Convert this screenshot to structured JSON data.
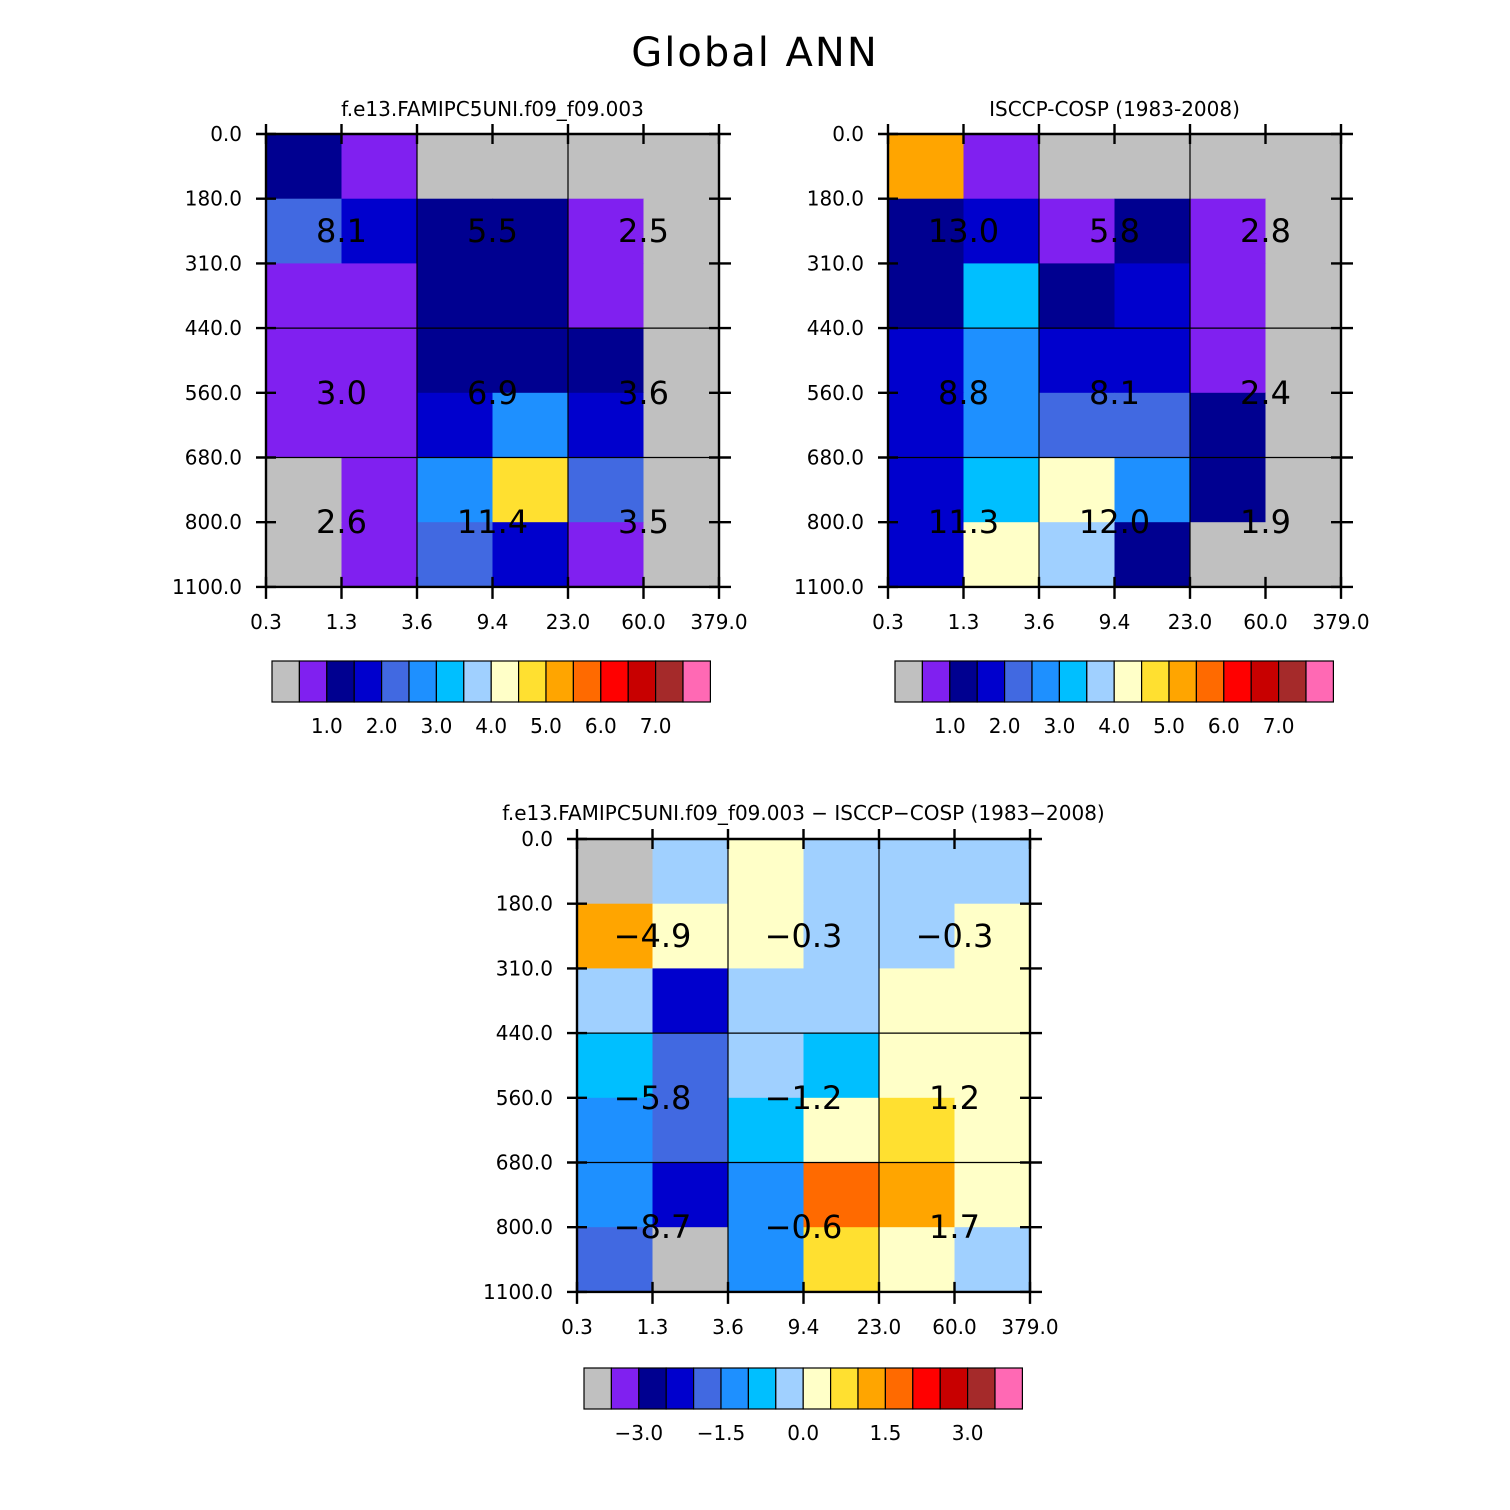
{
  "title": "Global ANN",
  "chart_data": [
    {
      "type": "heatmap",
      "title": "f.e13.FAMIPC5UNI.f09_f09.003",
      "x_ticks": [
        "0.3",
        "1.3",
        "3.6",
        "9.4",
        "23.0",
        "60.0",
        "379.0"
      ],
      "y_ticks": [
        "0.0",
        "180.0",
        "310.0",
        "440.0",
        "560.0",
        "680.0",
        "800.0",
        "1100.0"
      ],
      "cell_colors": [
        [
          "#000090",
          "#8020f0",
          "#c0c0c0",
          "#c0c0c0",
          "#c0c0c0",
          "#c0c0c0"
        ],
        [
          "#4169e1",
          "#0000cd",
          "#000090",
          "#000090",
          "#8020f0",
          "#c0c0c0"
        ],
        [
          "#8020f0",
          "#8020f0",
          "#000090",
          "#000090",
          "#8020f0",
          "#c0c0c0"
        ],
        [
          "#8020f0",
          "#8020f0",
          "#000090",
          "#000090",
          "#000090",
          "#c0c0c0"
        ],
        [
          "#8020f0",
          "#8020f0",
          "#0000cd",
          "#1e90ff",
          "#0000cd",
          "#c0c0c0"
        ],
        [
          "#c0c0c0",
          "#8020f0",
          "#1e90ff",
          "#ffe030",
          "#4169e1",
          "#c0c0c0"
        ],
        [
          "#c0c0c0",
          "#8020f0",
          "#4169e1",
          "#0000cd",
          "#8020f0",
          "#c0c0c0"
        ]
      ],
      "group_values": [
        [
          "8.1",
          "5.5",
          "2.5"
        ],
        [
          "3.0",
          "6.9",
          "3.6"
        ],
        [
          "2.6",
          "11.4",
          "3.5"
        ]
      ],
      "colorbar": {
        "colors": [
          "#c0c0c0",
          "#8020f0",
          "#000090",
          "#0000cd",
          "#4169e1",
          "#1e90ff",
          "#00bfff",
          "#a0d0ff",
          "#ffffc8",
          "#ffe030",
          "#ffa500",
          "#ff6a00",
          "#ff0000",
          "#c80000",
          "#a52a2a",
          "#ff69b4"
        ],
        "labels": [
          "1.0",
          "2.0",
          "3.0",
          "4.0",
          "5.0",
          "6.0",
          "7.0"
        ]
      }
    },
    {
      "type": "heatmap",
      "title": "ISCCP-COSP (1983-2008)",
      "x_ticks": [
        "0.3",
        "1.3",
        "3.6",
        "9.4",
        "23.0",
        "60.0",
        "379.0"
      ],
      "y_ticks": [
        "0.0",
        "180.0",
        "310.0",
        "440.0",
        "560.0",
        "680.0",
        "800.0",
        "1100.0"
      ],
      "cell_colors": [
        [
          "#ffa500",
          "#8020f0",
          "#c0c0c0",
          "#c0c0c0",
          "#c0c0c0",
          "#c0c0c0"
        ],
        [
          "#000090",
          "#0000cd",
          "#8020f0",
          "#000090",
          "#8020f0",
          "#c0c0c0"
        ],
        [
          "#000090",
          "#00bfff",
          "#000090",
          "#0000cd",
          "#8020f0",
          "#c0c0c0"
        ],
        [
          "#0000cd",
          "#1e90ff",
          "#0000cd",
          "#0000cd",
          "#8020f0",
          "#c0c0c0"
        ],
        [
          "#0000cd",
          "#1e90ff",
          "#4169e1",
          "#4169e1",
          "#000090",
          "#c0c0c0"
        ],
        [
          "#0000cd",
          "#00bfff",
          "#ffffc8",
          "#1e90ff",
          "#000090",
          "#c0c0c0"
        ],
        [
          "#0000cd",
          "#ffffc8",
          "#a0d0ff",
          "#000090",
          "#c0c0c0",
          "#c0c0c0"
        ]
      ],
      "group_values": [
        [
          "13.0",
          "5.8",
          "2.8"
        ],
        [
          "8.8",
          "8.1",
          "2.4"
        ],
        [
          "11.3",
          "12.0",
          "1.9"
        ]
      ],
      "colorbar": {
        "colors": [
          "#c0c0c0",
          "#8020f0",
          "#000090",
          "#0000cd",
          "#4169e1",
          "#1e90ff",
          "#00bfff",
          "#a0d0ff",
          "#ffffc8",
          "#ffe030",
          "#ffa500",
          "#ff6a00",
          "#ff0000",
          "#c80000",
          "#a52a2a",
          "#ff69b4"
        ],
        "labels": [
          "1.0",
          "2.0",
          "3.0",
          "4.0",
          "5.0",
          "6.0",
          "7.0"
        ]
      }
    },
    {
      "type": "heatmap",
      "title": "f.e13.FAMIPC5UNI.f09_f09.003 − ISCCP−COSP (1983−2008)",
      "x_ticks": [
        "0.3",
        "1.3",
        "3.6",
        "9.4",
        "23.0",
        "60.0",
        "379.0"
      ],
      "y_ticks": [
        "0.0",
        "180.0",
        "310.0",
        "440.0",
        "560.0",
        "680.0",
        "800.0",
        "1100.0"
      ],
      "cell_colors": [
        [
          "#c0c0c0",
          "#a0d0ff",
          "#ffffc8",
          "#a0d0ff",
          "#a0d0ff",
          "#a0d0ff"
        ],
        [
          "#ffa500",
          "#ffffc8",
          "#ffffc8",
          "#a0d0ff",
          "#a0d0ff",
          "#ffffc8"
        ],
        [
          "#a0d0ff",
          "#0000cd",
          "#a0d0ff",
          "#a0d0ff",
          "#ffffc8",
          "#ffffc8"
        ],
        [
          "#00bfff",
          "#4169e1",
          "#a0d0ff",
          "#00bfff",
          "#ffffc8",
          "#ffffc8"
        ],
        [
          "#1e90ff",
          "#4169e1",
          "#00bfff",
          "#ffffc8",
          "#ffe030",
          "#ffffc8"
        ],
        [
          "#1e90ff",
          "#0000cd",
          "#1e90ff",
          "#ff6a00",
          "#ffa500",
          "#ffffc8"
        ],
        [
          "#4169e1",
          "#c0c0c0",
          "#1e90ff",
          "#ffe030",
          "#ffffc8",
          "#a0d0ff"
        ]
      ],
      "group_values": [
        [
          "−4.9",
          "−0.3",
          "−0.3"
        ],
        [
          "−5.8",
          "−1.2",
          "1.2"
        ],
        [
          "−8.7",
          "−0.6",
          "1.7"
        ]
      ],
      "colorbar": {
        "colors": [
          "#c0c0c0",
          "#8020f0",
          "#000090",
          "#0000cd",
          "#4169e1",
          "#1e90ff",
          "#00bfff",
          "#a0d0ff",
          "#ffffc8",
          "#ffe030",
          "#ffa500",
          "#ff6a00",
          "#ff0000",
          "#c80000",
          "#a52a2a",
          "#ff69b4"
        ],
        "labels": [
          "−3.0",
          "−1.5",
          "0.0",
          "1.5",
          "3.0"
        ]
      }
    }
  ]
}
